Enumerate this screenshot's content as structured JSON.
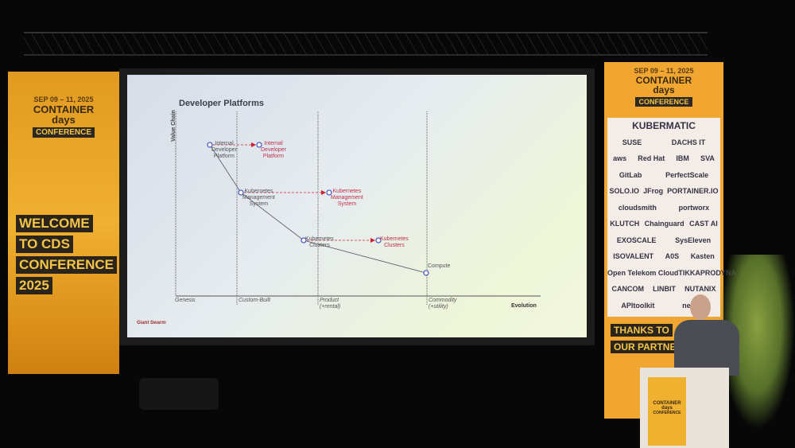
{
  "slide": {
    "title": "Developer Platforms",
    "y_axis_label": "Value Chain",
    "x_axis_label": "Evolution",
    "stages": [
      "Genesis",
      "Custom-Built",
      "Product\n(+rental)",
      "Commodity\n(+utility)"
    ],
    "components": [
      {
        "name": "Internal Developer Platform",
        "type": "current"
      },
      {
        "name": "Kubernetes Management System",
        "type": "current"
      },
      {
        "name": "Kubernetes Clusters",
        "type": "current"
      },
      {
        "name": "Compute",
        "type": "current"
      },
      {
        "name": "Internal Developer Platform",
        "type": "future"
      },
      {
        "name": "Kubernetes Management System",
        "type": "future"
      },
      {
        "name": "Kubernetes Clusters",
        "type": "future"
      }
    ],
    "footer_logo": "Giant Swarm",
    "colors": {
      "node": "#5060c0",
      "future_text": "#c0304a",
      "arrow": "#d02030",
      "line": "#556"
    }
  },
  "left_banner": {
    "date": "SEP 09 – 11, 2025",
    "brand_line1": "CONTAINER",
    "brand_line2": "days",
    "brand_line3": "CONFERENCE",
    "welcome": [
      "WELCOME",
      "TO CDS",
      "CONFERENCE",
      "2025"
    ]
  },
  "right_banner": {
    "date": "SEP 09 – 11, 2025",
    "brand_line1": "CONTAINER",
    "brand_line2": "days",
    "brand_line3": "CONFERENCE",
    "thanks": [
      "THANKS TO",
      "OUR PARTNERS"
    ],
    "sponsors": [
      [
        "KUBERMATIC"
      ],
      [
        "SUSE",
        "DACHS IT"
      ],
      [
        "aws",
        "Red Hat",
        "IBM",
        "SVA"
      ],
      [
        "GitLab",
        "PerfectScale"
      ],
      [
        "SOLO.IO",
        "JFrog",
        "PORTAINER.IO"
      ],
      [
        "cloudsmith",
        "portworx"
      ],
      [
        "KLUTCH",
        "Chainguard",
        "CAST AI"
      ],
      [
        "EXOSCALE",
        "SysEleven"
      ],
      [
        "ISOVALENT",
        "A0S",
        "Kasten"
      ],
      [
        "Open Telekom Cloud",
        "TIKKA",
        "PRODYNA"
      ],
      [
        "CANCOM",
        "LINBIT",
        "NUTANIX"
      ],
      [
        "APItoolkit",
        "netbird"
      ]
    ]
  },
  "podium_sign": {
    "line1": "CONTAINER",
    "line2": "days",
    "line3": "CONFERENCE"
  }
}
